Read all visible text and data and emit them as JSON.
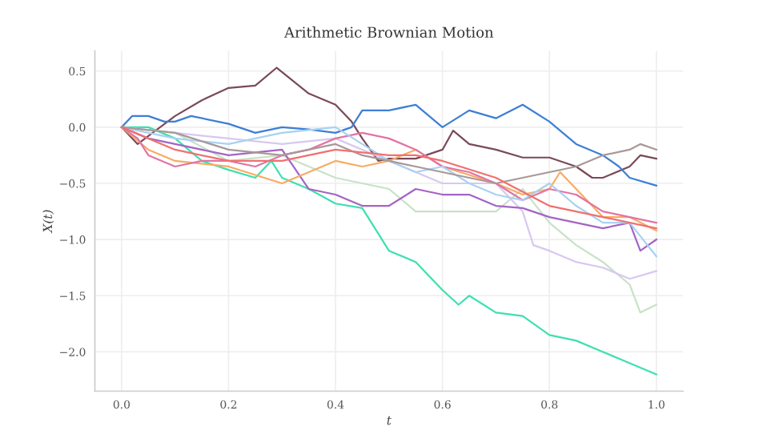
{
  "chart_data": {
    "type": "line",
    "title": "Arithmetic Brownian Motion",
    "xlabel": "t",
    "ylabel": "X(t)",
    "xlim": [
      -0.05,
      1.05
    ],
    "ylim": [
      -2.35,
      0.68
    ],
    "xticks": [
      {
        "value": 0,
        "label": "0.0"
      },
      {
        "value": 0.2,
        "label": "0.2"
      },
      {
        "value": 0.4,
        "label": "0.4"
      },
      {
        "value": 0.6,
        "label": "0.6"
      },
      {
        "value": 0.8,
        "label": "0.8"
      },
      {
        "value": 1,
        "label": "1.0"
      }
    ],
    "yticks": [
      {
        "value": 0.5,
        "label": "0.5"
      },
      {
        "value": 0,
        "label": "0.0"
      },
      {
        "value": -0.5,
        "label": "−0.5"
      },
      {
        "value": -1,
        "label": "−1.0"
      },
      {
        "value": -1.5,
        "label": "−1.5"
      },
      {
        "value": -2,
        "label": "−2.0"
      }
    ],
    "grid": true,
    "marker": "none",
    "line_style": "solid",
    "series": [
      {
        "color": "#7a4a58",
        "x": [
          0,
          0.03,
          0.1,
          0.15,
          0.2,
          0.25,
          0.29,
          0.35,
          0.4,
          0.43,
          0.45,
          0.48,
          0.5,
          0.55,
          0.6,
          0.62,
          0.65,
          0.7,
          0.75,
          0.8,
          0.85,
          0.88,
          0.9,
          0.95,
          0.97,
          1.0
        ],
        "values": [
          0,
          -0.15,
          0.1,
          0.24,
          0.35,
          0.37,
          0.53,
          0.3,
          0.2,
          0.05,
          -0.1,
          -0.3,
          -0.28,
          -0.28,
          -0.2,
          -0.03,
          -0.15,
          -0.2,
          -0.27,
          -0.27,
          -0.35,
          -0.45,
          -0.45,
          -0.35,
          -0.25,
          -0.28
        ]
      },
      {
        "color": "#3c7fd6",
        "x": [
          0,
          0.02,
          0.05,
          0.08,
          0.1,
          0.13,
          0.2,
          0.25,
          0.3,
          0.35,
          0.4,
          0.43,
          0.45,
          0.5,
          0.55,
          0.6,
          0.65,
          0.7,
          0.75,
          0.8,
          0.85,
          0.9,
          0.93,
          0.95,
          1.0
        ],
        "values": [
          0,
          0.1,
          0.1,
          0.05,
          0.05,
          0.1,
          0.03,
          -0.05,
          0.0,
          -0.02,
          -0.05,
          0.0,
          0.15,
          0.15,
          0.2,
          0.0,
          0.15,
          0.08,
          0.2,
          0.05,
          -0.15,
          -0.25,
          -0.35,
          -0.45,
          -0.52
        ]
      },
      {
        "color": "#3ee0b0",
        "x": [
          0,
          0.05,
          0.1,
          0.15,
          0.2,
          0.25,
          0.28,
          0.3,
          0.35,
          0.4,
          0.45,
          0.5,
          0.55,
          0.6,
          0.63,
          0.65,
          0.7,
          0.75,
          0.8,
          0.85,
          0.9,
          0.95,
          1.0
        ],
        "values": [
          0,
          0.0,
          -0.1,
          -0.3,
          -0.38,
          -0.45,
          -0.3,
          -0.45,
          -0.55,
          -0.68,
          -0.72,
          -1.1,
          -1.2,
          -1.45,
          -1.58,
          -1.5,
          -1.65,
          -1.68,
          -1.85,
          -1.9,
          -2.0,
          -2.1,
          -2.2
        ]
      },
      {
        "color": "#c8e2c8",
        "x": [
          0,
          0.1,
          0.2,
          0.3,
          0.4,
          0.5,
          0.55,
          0.6,
          0.7,
          0.75,
          0.8,
          0.85,
          0.9,
          0.95,
          0.97,
          1.0
        ],
        "values": [
          0,
          -0.05,
          -0.3,
          -0.25,
          -0.45,
          -0.55,
          -0.75,
          -0.75,
          -0.75,
          -0.55,
          -0.85,
          -1.05,
          -1.2,
          -1.4,
          -1.65,
          -1.58
        ]
      },
      {
        "color": "#d8c8f0",
        "x": [
          0,
          0.1,
          0.2,
          0.3,
          0.4,
          0.5,
          0.6,
          0.7,
          0.75,
          0.77,
          0.8,
          0.85,
          0.9,
          0.95,
          1.0
        ],
        "values": [
          0,
          -0.05,
          -0.1,
          -0.15,
          -0.1,
          -0.3,
          -0.5,
          -0.5,
          -0.75,
          -1.05,
          -1.1,
          -1.2,
          -1.25,
          -1.35,
          -1.28
        ]
      },
      {
        "color": "#a464c4",
        "x": [
          0,
          0.05,
          0.1,
          0.2,
          0.3,
          0.35,
          0.4,
          0.45,
          0.5,
          0.55,
          0.6,
          0.65,
          0.7,
          0.75,
          0.8,
          0.85,
          0.9,
          0.95,
          0.97,
          1.0
        ],
        "values": [
          0,
          -0.1,
          -0.15,
          -0.25,
          -0.2,
          -0.55,
          -0.6,
          -0.7,
          -0.7,
          -0.55,
          -0.6,
          -0.6,
          -0.7,
          -0.72,
          -0.8,
          -0.85,
          -0.9,
          -0.85,
          -1.1,
          -1.0
        ]
      },
      {
        "color": "#f6ac64",
        "x": [
          0,
          0.05,
          0.1,
          0.2,
          0.3,
          0.35,
          0.4,
          0.45,
          0.5,
          0.55,
          0.6,
          0.7,
          0.75,
          0.8,
          0.82,
          0.85,
          0.9,
          0.95,
          1.0
        ],
        "values": [
          0,
          -0.2,
          -0.3,
          -0.35,
          -0.5,
          -0.4,
          -0.3,
          -0.35,
          -0.3,
          -0.2,
          -0.35,
          -0.5,
          -0.6,
          -0.55,
          -0.4,
          -0.55,
          -0.8,
          -0.8,
          -0.92
        ]
      },
      {
        "color": "#e274a4",
        "x": [
          0,
          0.03,
          0.05,
          0.1,
          0.15,
          0.2,
          0.25,
          0.3,
          0.35,
          0.4,
          0.45,
          0.5,
          0.55,
          0.6,
          0.65,
          0.7,
          0.75,
          0.8,
          0.85,
          0.9,
          0.95,
          1.0
        ],
        "values": [
          0,
          -0.1,
          -0.25,
          -0.35,
          -0.3,
          -0.3,
          -0.35,
          -0.25,
          -0.2,
          -0.1,
          -0.05,
          -0.1,
          -0.2,
          -0.35,
          -0.4,
          -0.5,
          -0.65,
          -0.55,
          -0.6,
          -0.75,
          -0.8,
          -0.85
        ]
      },
      {
        "color": "#a8d2f2",
        "x": [
          0,
          0.1,
          0.2,
          0.3,
          0.4,
          0.45,
          0.5,
          0.55,
          0.6,
          0.65,
          0.7,
          0.75,
          0.8,
          0.85,
          0.9,
          0.95,
          1.0
        ],
        "values": [
          0,
          -0.1,
          -0.15,
          -0.05,
          0.0,
          -0.15,
          -0.3,
          -0.4,
          -0.35,
          -0.5,
          -0.6,
          -0.65,
          -0.5,
          -0.7,
          -0.85,
          -0.85,
          -1.15
        ]
      },
      {
        "color": "#a89898",
        "x": [
          0,
          0.1,
          0.2,
          0.3,
          0.4,
          0.45,
          0.5,
          0.55,
          0.6,
          0.65,
          0.7,
          0.75,
          0.8,
          0.85,
          0.9,
          0.95,
          0.97,
          1.0
        ],
        "values": [
          0,
          -0.05,
          -0.2,
          -0.25,
          -0.15,
          -0.25,
          -0.3,
          -0.35,
          -0.4,
          -0.45,
          -0.5,
          -0.45,
          -0.4,
          -0.35,
          -0.25,
          -0.2,
          -0.15,
          -0.2
        ]
      },
      {
        "color": "#f07070",
        "x": [
          0,
          0.1,
          0.2,
          0.3,
          0.4,
          0.5,
          0.55,
          0.6,
          0.7,
          0.8,
          0.9,
          1.0
        ],
        "values": [
          0,
          -0.2,
          -0.3,
          -0.3,
          -0.2,
          -0.25,
          -0.25,
          -0.3,
          -0.45,
          -0.7,
          -0.8,
          -0.9
        ]
      }
    ]
  }
}
